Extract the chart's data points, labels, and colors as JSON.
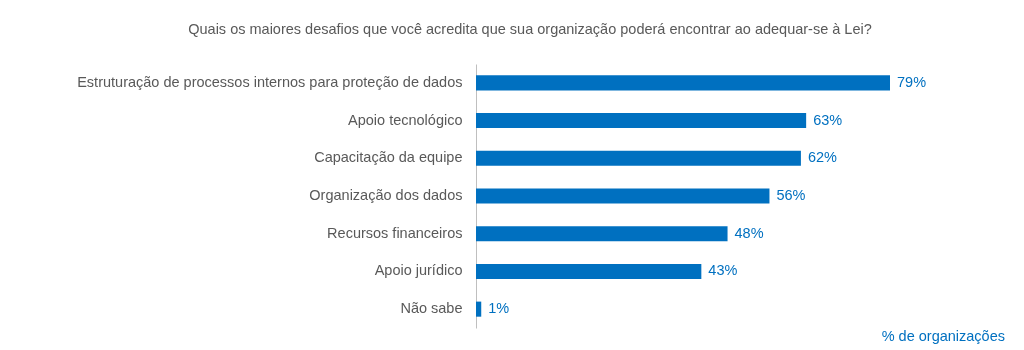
{
  "chart_data": {
    "type": "bar",
    "orientation": "horizontal",
    "title": "Quais os maiores desafios que você acredita que sua organização poderá encontrar ao adequar-se à Lei?",
    "categories": [
      "Estruturação de processos internos para proteção de dados",
      "Apoio tecnológico",
      "Capacitação da equipe",
      "Organização dos dados",
      "Recursos financeiros",
      "Apoio jurídico",
      "Não sabe"
    ],
    "values": [
      79,
      63,
      62,
      56,
      48,
      43,
      1
    ],
    "value_labels": [
      "79%",
      "63%",
      "62%",
      "56%",
      "48%",
      "43%",
      "1%"
    ],
    "color": "#0070c0",
    "annotations": [
      "% de organizações"
    ]
  }
}
